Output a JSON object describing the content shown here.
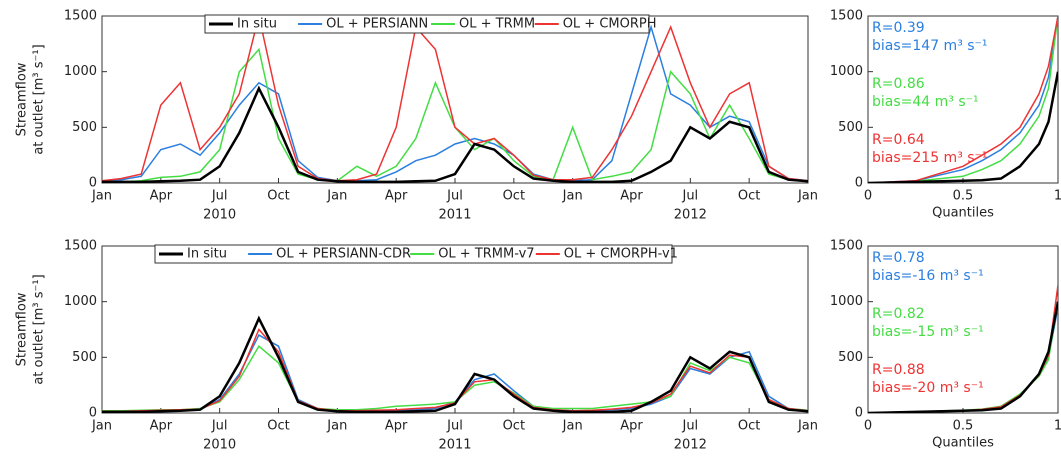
{
  "chart_data": [
    {
      "type": "line",
      "ylabel": [
        "Streamflow",
        "at outlet [m³ s⁻¹]"
      ],
      "x": [
        "2010-01",
        "2010-02",
        "2010-03",
        "2010-04",
        "2010-05",
        "2010-06",
        "2010-07",
        "2010-08",
        "2010-09",
        "2010-10",
        "2010-11",
        "2010-12",
        "2011-01",
        "2011-02",
        "2011-03",
        "2011-04",
        "2011-05",
        "2011-06",
        "2011-07",
        "2011-08",
        "2011-09",
        "2011-10",
        "2011-11",
        "2011-12",
        "2012-01",
        "2012-02",
        "2012-03",
        "2012-04",
        "2012-05",
        "2012-06",
        "2012-07",
        "2012-08",
        "2012-09",
        "2012-10",
        "2012-11",
        "2012-12",
        "2013-01"
      ],
      "xticks": [
        {
          "value": "2010-01",
          "label": "Jan"
        },
        {
          "value": "2010-04",
          "label": "Apr"
        },
        {
          "value": "2010-07",
          "label": "Jul"
        },
        {
          "value": "2010-10",
          "label": "Oct"
        },
        {
          "value": "2011-01",
          "label": "Jan"
        },
        {
          "value": "2011-04",
          "label": "Apr"
        },
        {
          "value": "2011-07",
          "label": "Jul"
        },
        {
          "value": "2011-10",
          "label": "Oct"
        },
        {
          "value": "2012-01",
          "label": "Jan"
        },
        {
          "value": "2012-04",
          "label": "Apr"
        },
        {
          "value": "2012-07",
          "label": "Jul"
        },
        {
          "value": "2012-10",
          "label": "Oct"
        },
        {
          "value": "2013-01",
          "label": "Jan"
        }
      ],
      "year_labels": [
        {
          "value": "2010-07",
          "label": "2010"
        },
        {
          "value": "2011-07",
          "label": "2011"
        },
        {
          "value": "2012-07",
          "label": "2012"
        }
      ],
      "ylim": [
        0,
        1500
      ],
      "yticks": [
        0,
        500,
        1000,
        1500
      ],
      "series": [
        {
          "name": "In situ",
          "color": "#000000",
          "values": [
            10,
            10,
            10,
            15,
            20,
            30,
            150,
            450,
            850,
            500,
            100,
            30,
            15,
            10,
            10,
            10,
            15,
            20,
            80,
            350,
            300,
            150,
            40,
            20,
            10,
            10,
            10,
            20,
            100,
            200,
            500,
            400,
            550,
            500,
            100,
            30,
            15
          ]
        },
        {
          "name": "OL + PERSIANN",
          "color": "#2a7fe0",
          "values": [
            20,
            30,
            60,
            300,
            350,
            250,
            450,
            700,
            900,
            800,
            200,
            50,
            20,
            20,
            30,
            100,
            200,
            250,
            350,
            400,
            350,
            250,
            80,
            30,
            20,
            30,
            200,
            800,
            1400,
            800,
            700,
            500,
            600,
            550,
            150,
            40,
            20
          ]
        },
        {
          "name": "OL + TRMM",
          "color": "#44dd44",
          "values": [
            10,
            10,
            20,
            50,
            60,
            100,
            300,
            1000,
            1200,
            400,
            80,
            30,
            20,
            150,
            60,
            150,
            400,
            900,
            500,
            300,
            400,
            200,
            60,
            30,
            500,
            30,
            60,
            100,
            300,
            1000,
            800,
            400,
            700,
            400,
            80,
            30,
            20
          ]
        },
        {
          "name": "OL + CMORPH",
          "color": "#ee3333",
          "values": [
            20,
            40,
            80,
            700,
            900,
            300,
            500,
            800,
            1500,
            700,
            150,
            40,
            20,
            30,
            80,
            500,
            1400,
            1200,
            500,
            350,
            400,
            250,
            70,
            30,
            30,
            50,
            300,
            600,
            1000,
            1400,
            900,
            500,
            800,
            900,
            150,
            40,
            20
          ]
        }
      ]
    },
    {
      "type": "quantile",
      "xlabel": "Quantiles",
      "x": [
        0,
        0.25,
        0.5,
        0.6,
        0.7,
        0.8,
        0.9,
        0.95,
        1
      ],
      "xlim": [
        0,
        1
      ],
      "xticks": [
        0,
        0.5,
        1
      ],
      "ylim": [
        0,
        1500
      ],
      "yticks": [
        0,
        500,
        1000,
        1500
      ],
      "series": [
        {
          "color": "#000000",
          "values": [
            0,
            10,
            20,
            25,
            40,
            150,
            350,
            550,
            1000
          ]
        },
        {
          "color": "#2a7fe0",
          "values": [
            0,
            20,
            120,
            200,
            300,
            450,
            700,
            950,
            1500
          ]
        },
        {
          "color": "#44dd44",
          "values": [
            0,
            15,
            60,
            120,
            200,
            350,
            600,
            850,
            1500
          ]
        },
        {
          "color": "#ee3333",
          "values": [
            0,
            20,
            150,
            250,
            350,
            500,
            800,
            1050,
            1500
          ]
        }
      ],
      "annotations": [
        {
          "lines": [
            "R=0.39",
            "bias=147 m³ s⁻¹"
          ],
          "color": "#2a7fe0"
        },
        {
          "lines": [
            "R=0.86",
            "bias=44 m³ s⁻¹"
          ],
          "color": "#44dd44"
        },
        {
          "lines": [
            "R=0.64",
            "bias=215 m³ s⁻¹"
          ],
          "color": "#ee3333"
        }
      ]
    },
    {
      "type": "line",
      "ylabel": [
        "Streamflow",
        "at outlet [m³ s⁻¹]"
      ],
      "x": [
        "2010-01",
        "2010-02",
        "2010-03",
        "2010-04",
        "2010-05",
        "2010-06",
        "2010-07",
        "2010-08",
        "2010-09",
        "2010-10",
        "2010-11",
        "2010-12",
        "2011-01",
        "2011-02",
        "2011-03",
        "2011-04",
        "2011-05",
        "2011-06",
        "2011-07",
        "2011-08",
        "2011-09",
        "2011-10",
        "2011-11",
        "2011-12",
        "2012-01",
        "2012-02",
        "2012-03",
        "2012-04",
        "2012-05",
        "2012-06",
        "2012-07",
        "2012-08",
        "2012-09",
        "2012-10",
        "2012-11",
        "2012-12",
        "2013-01"
      ],
      "xticks": [
        {
          "value": "2010-01",
          "label": "Jan"
        },
        {
          "value": "2010-04",
          "label": "Apr"
        },
        {
          "value": "2010-07",
          "label": "Jul"
        },
        {
          "value": "2010-10",
          "label": "Oct"
        },
        {
          "value": "2011-01",
          "label": "Jan"
        },
        {
          "value": "2011-04",
          "label": "Apr"
        },
        {
          "value": "2011-07",
          "label": "Jul"
        },
        {
          "value": "2011-10",
          "label": "Oct"
        },
        {
          "value": "2012-01",
          "label": "Jan"
        },
        {
          "value": "2012-04",
          "label": "Apr"
        },
        {
          "value": "2012-07",
          "label": "Jul"
        },
        {
          "value": "2012-10",
          "label": "Oct"
        },
        {
          "value": "2013-01",
          "label": "Jan"
        }
      ],
      "year_labels": [
        {
          "value": "2010-07",
          "label": "2010"
        },
        {
          "value": "2011-07",
          "label": "2011"
        },
        {
          "value": "2012-07",
          "label": "2012"
        }
      ],
      "ylim": [
        0,
        1500
      ],
      "yticks": [
        0,
        500,
        1000,
        1500
      ],
      "series": [
        {
          "name": "In situ",
          "color": "#000000",
          "values": [
            10,
            10,
            10,
            15,
            20,
            30,
            150,
            450,
            850,
            500,
            100,
            30,
            15,
            10,
            10,
            10,
            15,
            20,
            80,
            350,
            300,
            150,
            40,
            20,
            10,
            10,
            10,
            20,
            100,
            200,
            500,
            400,
            550,
            500,
            100,
            30,
            15
          ]
        },
        {
          "name": "OL + PERSIANN-CDR",
          "color": "#2a7fe0",
          "values": [
            15,
            15,
            15,
            20,
            25,
            30,
            120,
            350,
            700,
            600,
            120,
            40,
            20,
            15,
            20,
            20,
            30,
            40,
            100,
            300,
            350,
            200,
            60,
            30,
            20,
            20,
            30,
            40,
            80,
            150,
            400,
            350,
            500,
            550,
            150,
            40,
            20
          ]
        },
        {
          "name": "OL + TRMM-v7",
          "color": "#44dd44",
          "values": [
            20,
            20,
            25,
            30,
            30,
            40,
            100,
            300,
            600,
            450,
            100,
            40,
            30,
            30,
            40,
            60,
            70,
            80,
            100,
            250,
            280,
            180,
            60,
            40,
            40,
            40,
            60,
            80,
            100,
            150,
            450,
            380,
            500,
            450,
            120,
            40,
            25
          ]
        },
        {
          "name": "OL + CMORPH-v1",
          "color": "#ee3333",
          "values": [
            15,
            15,
            20,
            25,
            30,
            35,
            110,
            330,
            750,
            550,
            110,
            40,
            20,
            20,
            25,
            30,
            40,
            50,
            90,
            280,
            300,
            170,
            50,
            30,
            20,
            25,
            35,
            50,
            90,
            170,
            420,
            360,
            520,
            500,
            120,
            40,
            20
          ]
        }
      ]
    },
    {
      "type": "quantile",
      "xlabel": "Quantiles",
      "x": [
        0,
        0.25,
        0.5,
        0.6,
        0.7,
        0.8,
        0.9,
        0.95,
        1
      ],
      "xlim": [
        0,
        1
      ],
      "xticks": [
        0,
        0.5,
        1
      ],
      "ylim": [
        0,
        1500
      ],
      "yticks": [
        0,
        500,
        1000,
        1500
      ],
      "series": [
        {
          "color": "#000000",
          "values": [
            0,
            10,
            20,
            25,
            40,
            150,
            350,
            550,
            1000
          ]
        },
        {
          "color": "#2a7fe0",
          "values": [
            0,
            10,
            20,
            30,
            50,
            150,
            350,
            500,
            950
          ]
        },
        {
          "color": "#44dd44",
          "values": [
            0,
            12,
            25,
            35,
            60,
            170,
            330,
            480,
            1000
          ]
        },
        {
          "color": "#ee3333",
          "values": [
            0,
            12,
            22,
            32,
            55,
            160,
            340,
            520,
            1150
          ]
        }
      ],
      "annotations": [
        {
          "lines": [
            "R=0.78",
            "bias=-16 m³ s⁻¹"
          ],
          "color": "#2a7fe0"
        },
        {
          "lines": [
            "R=0.82",
            "bias=-15 m³ s⁻¹"
          ],
          "color": "#44dd44"
        },
        {
          "lines": [
            "R=0.88",
            "bias=-20 m³ s⁻¹"
          ],
          "color": "#ee3333"
        }
      ]
    }
  ]
}
